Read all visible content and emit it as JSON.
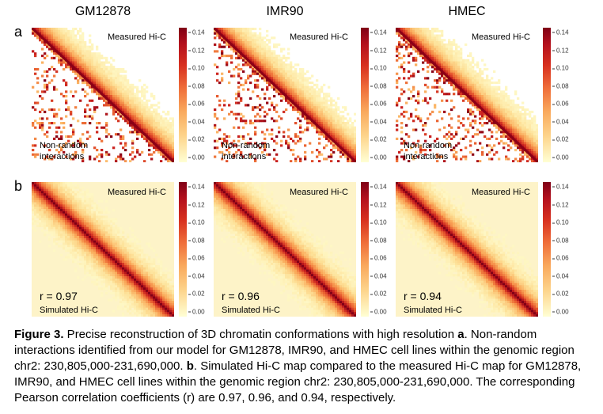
{
  "columns": [
    "GM12878",
    "IMR90",
    "HMEC"
  ],
  "row_labels": {
    "a": "a",
    "b": "b"
  },
  "colorbar_ticks": [
    "0.14",
    "0.12",
    "0.10",
    "0.08",
    "0.06",
    "0.04",
    "0.02",
    "0.00"
  ],
  "colors": {
    "dark": "#8b0016",
    "mid": "#e34a2a",
    "light": "#fde9b0",
    "bg": "#fdf3c8"
  },
  "row_a": {
    "measured_label": "Measured Hi-C",
    "annotation_line1": "Non-random",
    "annotation_line2": "interactions"
  },
  "row_b": {
    "measured_label": "Measured Hi-C",
    "simulated_label": "Simulated Hi-C",
    "r_values": [
      "r = 0.97",
      "r = 0.96",
      "r = 0.94"
    ]
  },
  "caption": {
    "label": "Figure 3.",
    "part1": " Precise reconstruction of 3D chromatin conformations with high resolution ",
    "a": "a",
    "part2": ". Non-random interactions identified from our model for GM12878, IMR90, and HMEC cell lines within the genomic region chr2: 230,805,000-231,690,000. ",
    "b": "b",
    "part3": ". Simulated Hi-C map compared to the measured Hi-C map for GM12878, IMR90, and HMEC cell lines within the genomic region chr2: 230,805,000-231,690,000. The corresponding Pearson correlation coefficients (r) are 0.97, 0.96, and 0.94, respectively."
  }
}
